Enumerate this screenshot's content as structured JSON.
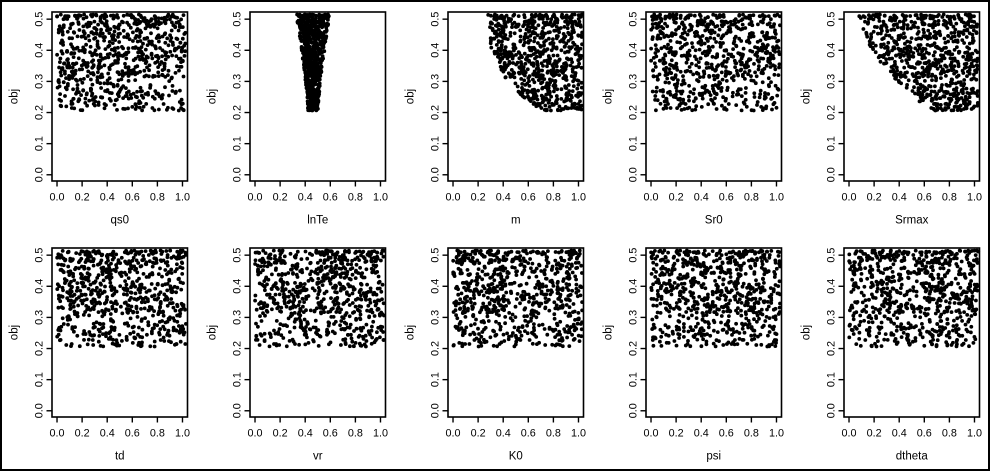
{
  "figure": {
    "description": "Grid of ten dotty plots (Monte Carlo sensitivity scatter plots): objective function value obj versus each model parameter",
    "layout": {
      "rows": 2,
      "cols": 5
    },
    "background_color": "#ffffff",
    "frame_color": "#000000",
    "axis_color": "#000000",
    "text_color": "#000000",
    "point_color": "#000000",
    "ylabel": "obj",
    "x_tick_labels": [
      "0.0",
      "0.2",
      "0.4",
      "0.6",
      "0.8",
      "1.0"
    ],
    "y_tick_labels": [
      "0.0",
      "0.1",
      "0.2",
      "0.3",
      "0.4",
      "0.5"
    ],
    "samples": {
      "n_points": 720,
      "y_seed": 42,
      "y_min": 0.205,
      "y_max": 0.515,
      "y_top_bias_exponent": 1.3
    }
  },
  "chart_data": [
    {
      "type": "scatter",
      "xlabel": "qs0",
      "ylabel": "obj",
      "xlim": [
        0,
        1
      ],
      "ylim": [
        0,
        0.5
      ],
      "x_ticks": [
        0,
        0.2,
        0.4,
        0.6,
        0.8,
        1.0
      ],
      "y_ticks": [
        0,
        0.1,
        0.2,
        0.3,
        0.4,
        0.5
      ],
      "n_points": 720,
      "seed": 101,
      "x_distribution": {
        "kind": "uniform",
        "min": 0.0,
        "max": 1.03
      },
      "pattern": "uniform scatter across full x range, obj between 0.21 and 0.52"
    },
    {
      "type": "scatter",
      "xlabel": "lnTe",
      "ylabel": "obj",
      "xlim": [
        0,
        1
      ],
      "ylim": [
        0,
        0.5
      ],
      "x_ticks": [
        0,
        0.2,
        0.4,
        0.6,
        0.8,
        1.0
      ],
      "y_ticks": [
        0,
        0.1,
        0.2,
        0.3,
        0.4,
        0.5
      ],
      "n_points": 720,
      "seed": 102,
      "x_distribution": {
        "kind": "band",
        "center": 0.462,
        "halfwidth_bottom": 0.04,
        "halfwidth_top": 0.133,
        "growth_exponent": 1.3
      },
      "pattern": "very dense vertical wedge centered near x=0.46, widening from x 0.42-0.50 at obj 0.21 to x 0.33-0.60 at obj 0.5"
    },
    {
      "type": "scatter",
      "xlabel": "m",
      "ylabel": "obj",
      "xlim": [
        0,
        1
      ],
      "ylim": [
        0,
        0.5
      ],
      "x_ticks": [
        0,
        0.2,
        0.4,
        0.6,
        0.8,
        1.0
      ],
      "y_ticks": [
        0,
        0.1,
        0.2,
        0.3,
        0.4,
        0.5
      ],
      "n_points": 720,
      "seed": 103,
      "x_distribution": {
        "kind": "lower_bound_curve",
        "x_at_top": 0.28,
        "coef": 10.3,
        "exponent": 2.71,
        "x_max": 1.03
      },
      "pattern": "points only in upper-right region above an arc from (0.28, 0.52) to (0.75, 0.21); empty lower-left"
    },
    {
      "type": "scatter",
      "xlabel": "Sr0",
      "ylabel": "obj",
      "xlim": [
        0,
        1
      ],
      "ylim": [
        0,
        0.5
      ],
      "x_ticks": [
        0,
        0.2,
        0.4,
        0.6,
        0.8,
        1.0
      ],
      "y_ticks": [
        0,
        0.1,
        0.2,
        0.3,
        0.4,
        0.5
      ],
      "n_points": 720,
      "seed": 104,
      "x_distribution": {
        "kind": "uniform",
        "min": 0.0,
        "max": 1.03
      },
      "pattern": "uniform scatter across full x range, obj between 0.21 and 0.52"
    },
    {
      "type": "scatter",
      "xlabel": "Srmax",
      "ylabel": "obj",
      "xlim": [
        0,
        1
      ],
      "ylim": [
        0,
        0.5
      ],
      "x_ticks": [
        0,
        0.2,
        0.4,
        0.6,
        0.8,
        1.0
      ],
      "y_ticks": [
        0,
        0.1,
        0.2,
        0.3,
        0.4,
        0.5
      ],
      "n_points": 720,
      "seed": 105,
      "x_distribution": {
        "kind": "lower_bound_curve",
        "x_at_top": 0.08,
        "coef": 4.2,
        "exponent": 1.7,
        "x_max": 1.03
      },
      "pattern": "points above gentle arc from (0.1, 0.52) to (0.65, 0.21); empty lower-left corner"
    },
    {
      "type": "scatter",
      "xlabel": "td",
      "ylabel": "obj",
      "xlim": [
        0,
        1
      ],
      "ylim": [
        0,
        0.5
      ],
      "x_ticks": [
        0,
        0.2,
        0.4,
        0.6,
        0.8,
        1.0
      ],
      "y_ticks": [
        0,
        0.1,
        0.2,
        0.3,
        0.4,
        0.5
      ],
      "n_points": 720,
      "seed": 106,
      "x_distribution": {
        "kind": "uniform",
        "min": 0.0,
        "max": 1.03
      },
      "pattern": "uniform scatter across full x range, obj between 0.21 and 0.52"
    },
    {
      "type": "scatter",
      "xlabel": "vr",
      "ylabel": "obj",
      "xlim": [
        0,
        1
      ],
      "ylim": [
        0,
        0.5
      ],
      "x_ticks": [
        0,
        0.2,
        0.4,
        0.6,
        0.8,
        1.0
      ],
      "y_ticks": [
        0,
        0.1,
        0.2,
        0.3,
        0.4,
        0.5
      ],
      "n_points": 720,
      "seed": 107,
      "x_distribution": {
        "kind": "uniform",
        "min": 0.0,
        "max": 1.03
      },
      "pattern": "uniform scatter across full x range, obj between 0.21 and 0.52"
    },
    {
      "type": "scatter",
      "xlabel": "K0",
      "ylabel": "obj",
      "xlim": [
        0,
        1
      ],
      "ylim": [
        0,
        0.5
      ],
      "x_ticks": [
        0,
        0.2,
        0.4,
        0.6,
        0.8,
        1.0
      ],
      "y_ticks": [
        0,
        0.1,
        0.2,
        0.3,
        0.4,
        0.5
      ],
      "n_points": 720,
      "seed": 108,
      "x_distribution": {
        "kind": "uniform",
        "min": 0.0,
        "max": 1.03
      },
      "pattern": "uniform scatter across full x range, obj between 0.21 and 0.52"
    },
    {
      "type": "scatter",
      "xlabel": "psi",
      "ylabel": "obj",
      "xlim": [
        0,
        1
      ],
      "ylim": [
        0,
        0.5
      ],
      "x_ticks": [
        0,
        0.2,
        0.4,
        0.6,
        0.8,
        1.0
      ],
      "y_ticks": [
        0,
        0.1,
        0.2,
        0.3,
        0.4,
        0.5
      ],
      "n_points": 720,
      "seed": 109,
      "x_distribution": {
        "kind": "uniform",
        "min": 0.0,
        "max": 1.03
      },
      "pattern": "uniform scatter across full x range, obj between 0.21 and 0.52"
    },
    {
      "type": "scatter",
      "xlabel": "dtheta",
      "ylabel": "obj",
      "xlim": [
        0,
        1
      ],
      "ylim": [
        0,
        0.5
      ],
      "x_ticks": [
        0,
        0.2,
        0.4,
        0.6,
        0.8,
        1.0
      ],
      "y_ticks": [
        0,
        0.1,
        0.2,
        0.3,
        0.4,
        0.5
      ],
      "n_points": 720,
      "seed": 110,
      "x_distribution": {
        "kind": "uniform",
        "min": 0.0,
        "max": 1.03
      },
      "pattern": "uniform scatter across full x range, obj between 0.21 and 0.52"
    }
  ]
}
